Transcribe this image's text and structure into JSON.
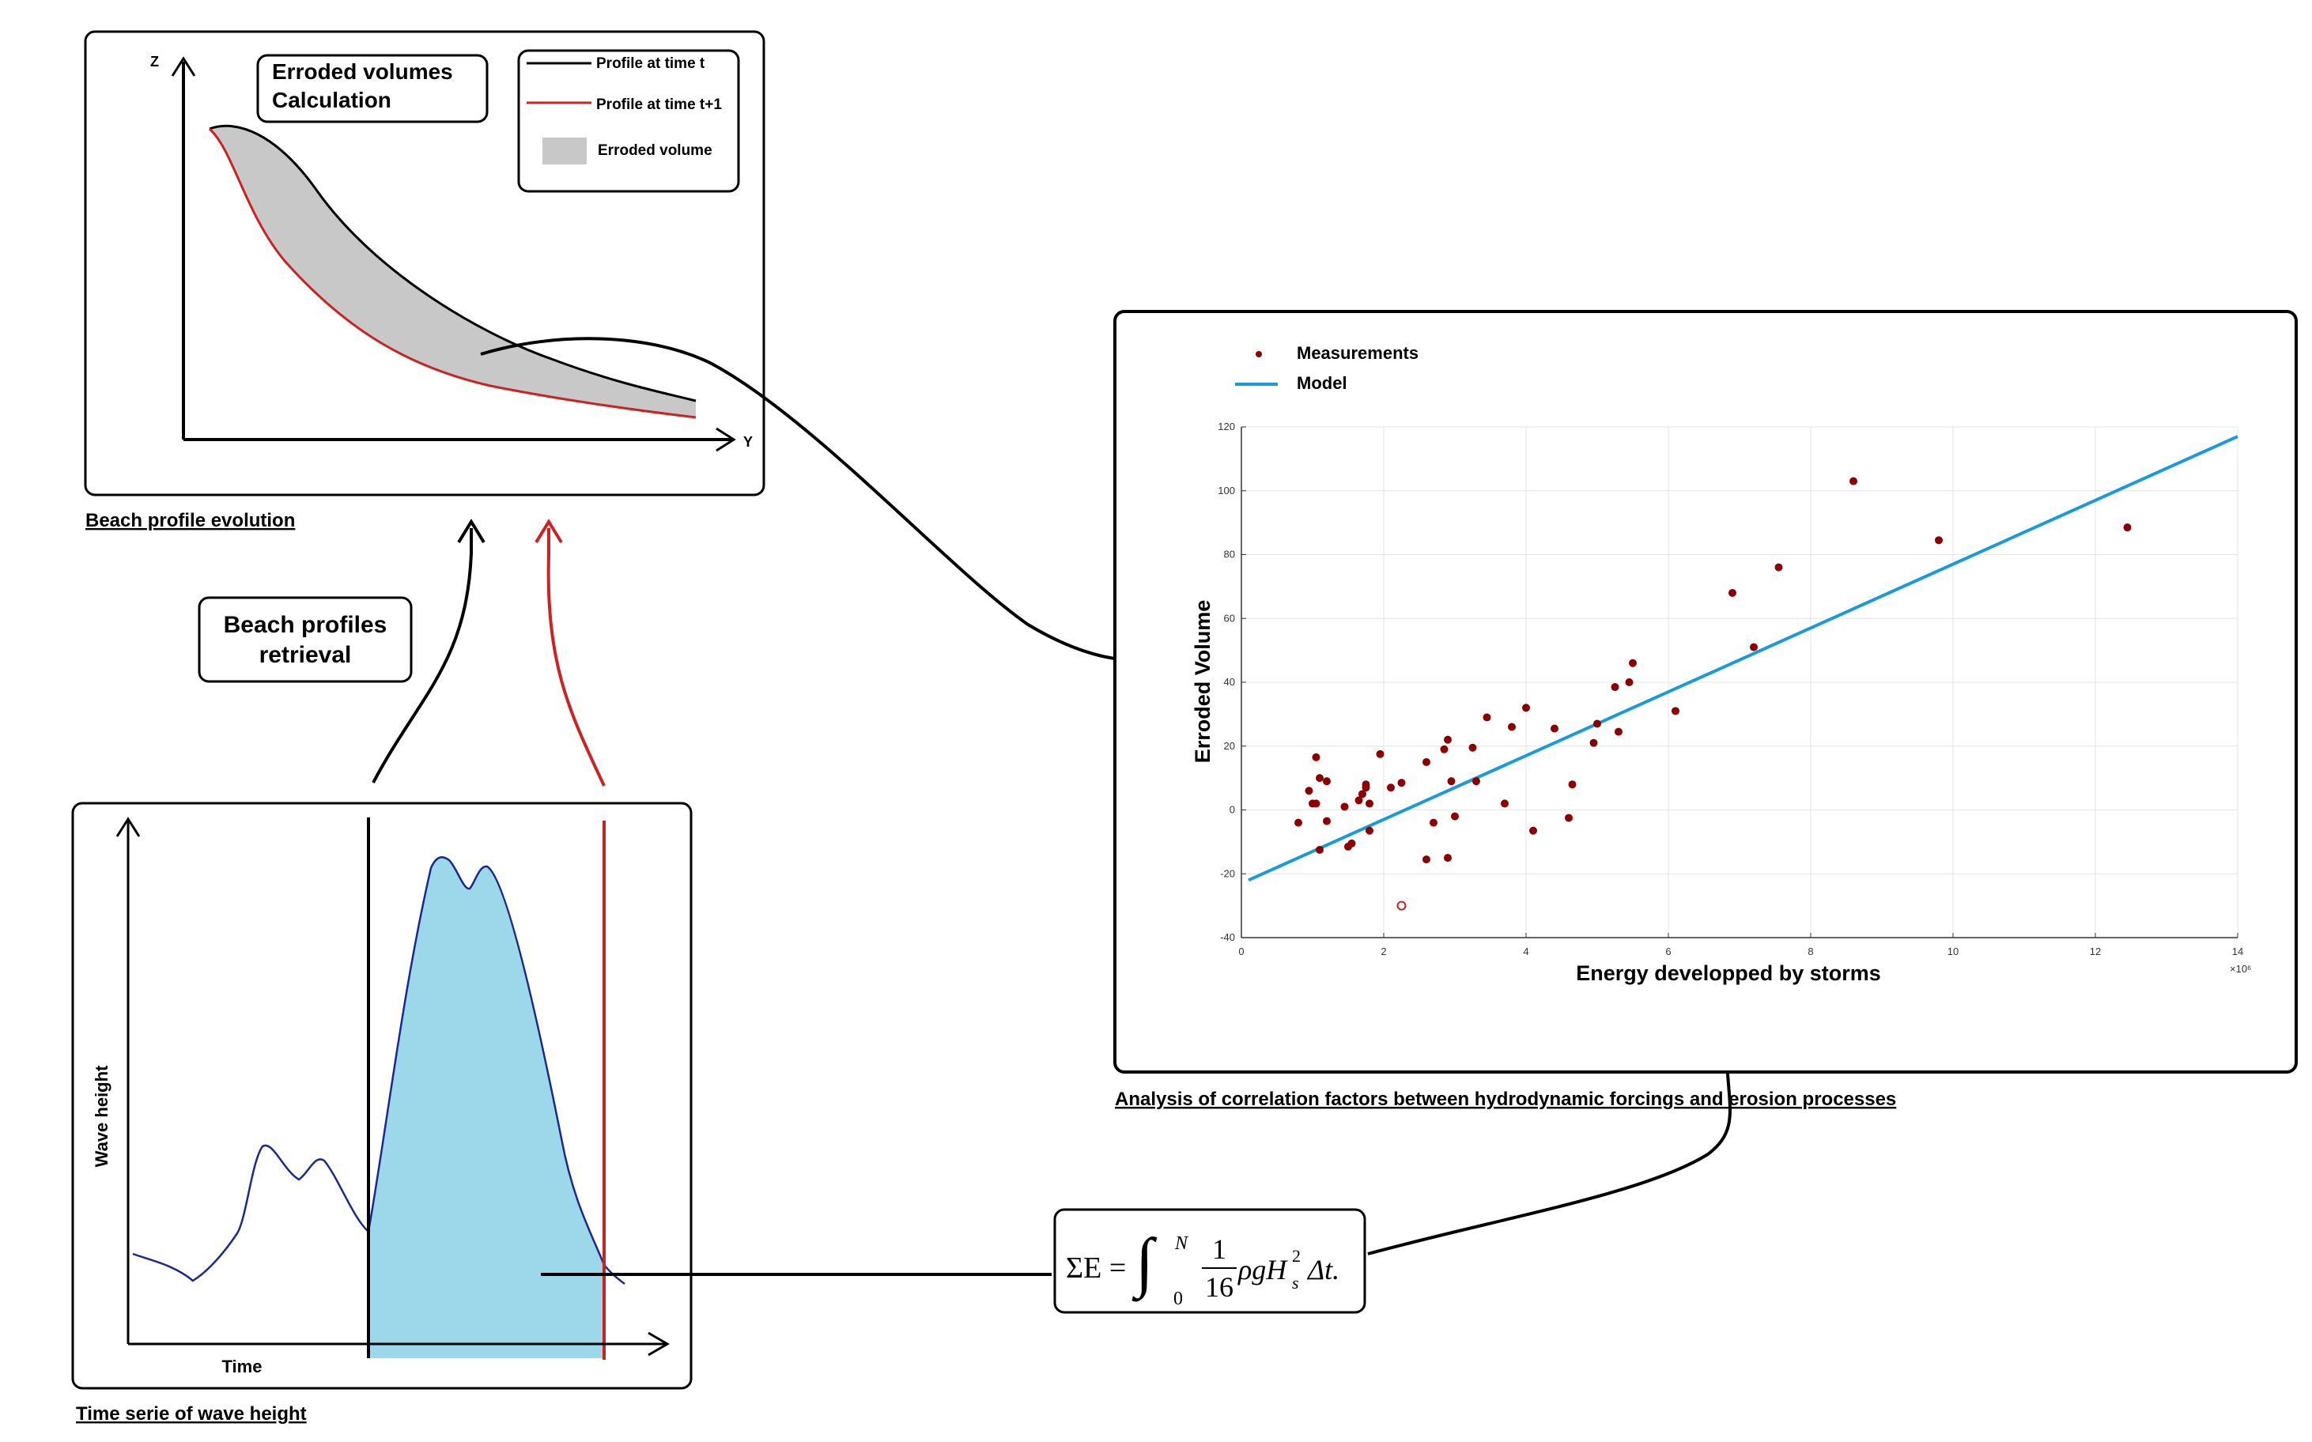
{
  "beach_panel": {
    "caption": "Beach  profile evolution",
    "axis_z": "Z",
    "axis_y": "Y",
    "title_line1": "Erroded volumes",
    "title_line2": "Calculation",
    "legend": {
      "profile_t": "Profile at time t",
      "profile_t1": "Profile at time t+1",
      "eroded": "Erroded volume"
    },
    "colors": {
      "profile_t": "#000000",
      "profile_t1": "#cc2222",
      "eroded": "#c8c8c8"
    }
  },
  "retrieval_box": {
    "line1": "Beach profiles",
    "line2": "retrieval"
  },
  "wave_panel": {
    "caption": "Time serie of wave height",
    "ylabel": "Wave height",
    "xlabel": "Time",
    "colors": {
      "series": "#1a2a8a",
      "fill": "#9dd8ea",
      "start_marker": "#000000",
      "end_marker": "#cc2222"
    }
  },
  "formula": {
    "lhs": "ΣE =",
    "upper": "N",
    "lower": "0",
    "numerator": "1",
    "denominator": "16",
    "integrand": "ρgH",
    "sup": "2",
    "sub": "s",
    "tail": "Δt."
  },
  "analysis": {
    "caption": "Analysis of correlation factors between hydrodynamic forcings and erosion processes",
    "legend_measurements": "Measurements",
    "legend_model": "Model"
  },
  "chart_data": {
    "type": "scatter",
    "xlabel": "Energy developped by storms",
    "ylabel": "Erroded Volume",
    "xlim": [
      0,
      14
    ],
    "ylim": [
      -40,
      120
    ],
    "x_multiplier": "×10⁶",
    "xticks": [
      "0",
      "2",
      "4",
      "6",
      "8",
      "10",
      "12",
      "14"
    ],
    "yticks": [
      "-40",
      "-20",
      "0",
      "20",
      "40",
      "60",
      "80",
      "100",
      "120"
    ],
    "grid": true,
    "legend_position": "top-left",
    "colors": {
      "measurements": "#8b0000",
      "model": "#1a9ad6"
    },
    "series": [
      {
        "name": "Measurements",
        "kind": "points",
        "points": [
          [
            0.8,
            -4
          ],
          [
            0.95,
            6
          ],
          [
            1.0,
            2
          ],
          [
            1.05,
            2
          ],
          [
            1.05,
            16.5
          ],
          [
            1.1,
            -12.5
          ],
          [
            1.1,
            10
          ],
          [
            1.2,
            9
          ],
          [
            1.2,
            -3.5
          ],
          [
            1.45,
            1
          ],
          [
            1.5,
            -11.5
          ],
          [
            1.55,
            -10.5
          ],
          [
            1.65,
            3
          ],
          [
            1.7,
            5
          ],
          [
            1.75,
            7
          ],
          [
            1.75,
            8
          ],
          [
            1.8,
            -6.5
          ],
          [
            1.8,
            2
          ],
          [
            1.95,
            17.5
          ],
          [
            2.1,
            7
          ],
          [
            2.25,
            8.5
          ],
          [
            2.6,
            15
          ],
          [
            2.6,
            -15.5
          ],
          [
            2.7,
            -4
          ],
          [
            2.85,
            19
          ],
          [
            2.9,
            22
          ],
          [
            2.9,
            -15
          ],
          [
            2.95,
            9
          ],
          [
            3.0,
            -2
          ],
          [
            3.25,
            19.5
          ],
          [
            3.3,
            9
          ],
          [
            3.45,
            29
          ],
          [
            3.7,
            2
          ],
          [
            3.8,
            26
          ],
          [
            4.0,
            32
          ],
          [
            4.1,
            -6.5
          ],
          [
            4.4,
            25.5
          ],
          [
            4.6,
            -2.5
          ],
          [
            4.65,
            8
          ],
          [
            4.95,
            21
          ],
          [
            5.0,
            27
          ],
          [
            5.25,
            38.5
          ],
          [
            5.3,
            24.5
          ],
          [
            5.45,
            40
          ],
          [
            5.5,
            46
          ],
          [
            6.1,
            31
          ],
          [
            6.9,
            68
          ],
          [
            7.2,
            51
          ],
          [
            7.55,
            76
          ],
          [
            8.6,
            103
          ],
          [
            9.8,
            84.5
          ],
          [
            12.45,
            88.5
          ]
        ]
      },
      {
        "name": "Model",
        "kind": "line",
        "points": [
          [
            0.1,
            -22
          ],
          [
            14,
            117
          ]
        ]
      }
    ],
    "annotations": [
      {
        "kind": "open-circle",
        "x": 2.25,
        "y": -30
      }
    ]
  }
}
